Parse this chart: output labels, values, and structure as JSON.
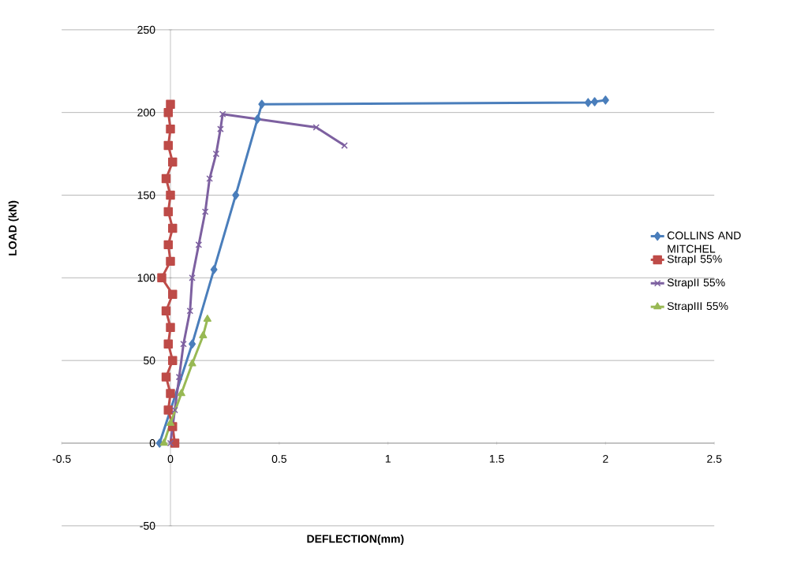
{
  "chart_data": {
    "type": "line",
    "xlabel": "DEFLECTION(mm)",
    "ylabel": "LOAD (kN)",
    "xlim": [
      -0.5,
      2.5
    ],
    "ylim": [
      -50,
      250
    ],
    "xticks": [
      -0.5,
      0,
      0.5,
      1,
      1.5,
      2,
      2.5
    ],
    "yticks": [
      -50,
      0,
      50,
      100,
      150,
      200,
      250
    ],
    "grid": "y",
    "legend": "right",
    "line_style": "solid",
    "series": [
      {
        "name": "COLLINS AND MITCHEL",
        "color": "#4a7ebb",
        "marker": "diamond",
        "x": [
          -0.05,
          0.1,
          0.2,
          0.3,
          0.4,
          0.42,
          1.92,
          1.95,
          2.0
        ],
        "values": [
          0,
          60,
          105,
          150,
          196,
          205,
          206,
          206.5,
          207.5
        ]
      },
      {
        "name": "StrapI 55%",
        "color": "#be4b48",
        "marker": "square",
        "x": [
          0.02,
          0.01,
          -0.01,
          0.0,
          -0.02,
          0.01,
          -0.01,
          0.0,
          -0.02,
          0.01,
          -0.04,
          0.0,
          -0.01,
          0.01,
          -0.01,
          0.0,
          -0.02,
          0.01,
          -0.01,
          0.0,
          -0.01,
          0.0
        ],
        "values": [
          0,
          10,
          20,
          30,
          40,
          50,
          60,
          70,
          80,
          90,
          100,
          110,
          120,
          130,
          140,
          150,
          160,
          170,
          180,
          190,
          200,
          205
        ]
      },
      {
        "name": "StrapII 55%",
        "color": "#7d60a0",
        "marker": "cross",
        "x": [
          0.0,
          0.02,
          0.04,
          0.06,
          0.09,
          0.1,
          0.13,
          0.16,
          0.18,
          0.21,
          0.23,
          0.24,
          0.67,
          0.8
        ],
        "values": [
          0,
          20,
          40,
          60,
          80,
          100,
          120,
          140,
          160,
          175,
          190,
          199,
          191,
          180
        ]
      },
      {
        "name": "StrapIII 55%",
        "color": "#98b954",
        "marker": "triangle",
        "x": [
          -0.03,
          0.0,
          0.05,
          0.1,
          0.15,
          0.17
        ],
        "values": [
          0,
          12,
          30,
          48,
          65,
          75
        ]
      }
    ]
  }
}
